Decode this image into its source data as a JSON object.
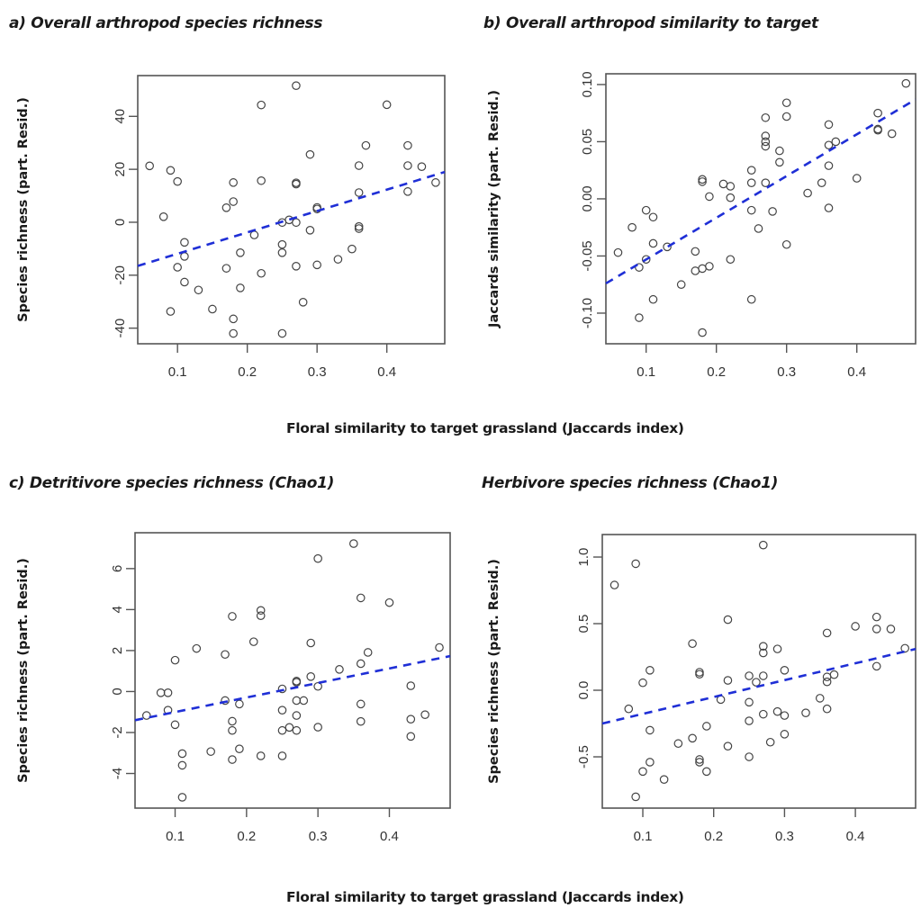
{
  "figure": {
    "shared_xlabel_top": "Floral similarity to target grassland (Jaccards index)",
    "shared_xlabel_bottom": "Floral similarity to target grassland (Jaccards index)",
    "fit_line_color": "#1f2fd6",
    "point_color": "#444444"
  },
  "chart_data": [
    {
      "id": "a",
      "type": "scatter",
      "title": "a) Overall arthropod species richness",
      "xlabel": "Floral similarity to target grassland (Jaccards index)",
      "ylabel": "Species richness (part. Resid.)",
      "xlim": [
        0.043,
        0.483
      ],
      "ylim": [
        -45.9,
        55.4
      ],
      "xticks": [
        0.1,
        0.2,
        0.3,
        0.4
      ],
      "xtick_labels": [
        "0.1",
        "0.2",
        "0.3",
        "0.4"
      ],
      "yticks": [
        -40,
        -20,
        0,
        20,
        40
      ],
      "ytick_labels": [
        "-40",
        "-20",
        "0",
        "20",
        "40"
      ],
      "grid": false,
      "fit_line": {
        "x": [
          0.043,
          0.483
        ],
        "y": [
          -16.5,
          19.0
        ],
        "style": "dashed"
      },
      "points": [
        [
          0.06,
          21.3
        ],
        [
          0.09,
          19.6
        ],
        [
          0.1,
          15.4
        ],
        [
          0.08,
          2.1
        ],
        [
          0.11,
          -7.6
        ],
        [
          0.11,
          -12.9
        ],
        [
          0.1,
          -17.0
        ],
        [
          0.11,
          -22.6
        ],
        [
          0.13,
          -25.6
        ],
        [
          0.09,
          -33.7
        ],
        [
          0.15,
          -32.8
        ],
        [
          0.18,
          -36.5
        ],
        [
          0.18,
          -42.0
        ],
        [
          0.17,
          5.5
        ],
        [
          0.18,
          7.8
        ],
        [
          0.18,
          15.0
        ],
        [
          0.17,
          -17.4
        ],
        [
          0.19,
          -11.5
        ],
        [
          0.19,
          -24.8
        ],
        [
          0.22,
          44.3
        ],
        [
          0.22,
          15.7
        ],
        [
          0.21,
          -4.8
        ],
        [
          0.22,
          -19.3
        ],
        [
          0.25,
          -0.1
        ],
        [
          0.25,
          -8.4
        ],
        [
          0.25,
          -11.5
        ],
        [
          0.25,
          -42.0
        ],
        [
          0.26,
          0.9
        ],
        [
          0.27,
          51.6
        ],
        [
          0.29,
          25.6
        ],
        [
          0.27,
          14.9
        ],
        [
          0.27,
          14.4
        ],
        [
          0.3,
          5.6
        ],
        [
          0.3,
          5.0
        ],
        [
          0.27,
          -0.1
        ],
        [
          0.29,
          -3.0
        ],
        [
          0.27,
          -16.6
        ],
        [
          0.3,
          -16.1
        ],
        [
          0.33,
          -14.0
        ],
        [
          0.35,
          -10.1
        ],
        [
          0.28,
          -30.2
        ],
        [
          0.36,
          21.4
        ],
        [
          0.37,
          29.0
        ],
        [
          0.36,
          11.2
        ],
        [
          0.36,
          -1.6
        ],
        [
          0.36,
          -2.4
        ],
        [
          0.4,
          44.4
        ],
        [
          0.43,
          29.0
        ],
        [
          0.43,
          21.4
        ],
        [
          0.43,
          11.6
        ],
        [
          0.45,
          21.0
        ],
        [
          0.47,
          15.0
        ]
      ]
    },
    {
      "id": "b",
      "type": "scatter",
      "title": "b) Overall arthropod similarity to target",
      "xlabel": "Floral similarity to target grassland (Jaccards index)",
      "ylabel": "Jaccards  similarity (part. Resid.)",
      "xlim": [
        0.0427,
        0.4837
      ],
      "ylim": [
        -0.1268,
        0.1094
      ],
      "xticks": [
        0.1,
        0.2,
        0.3,
        0.4
      ],
      "xtick_labels": [
        "0.1",
        "0.2",
        "0.3",
        "0.4"
      ],
      "yticks": [
        -0.1,
        -0.05,
        0.0,
        0.05,
        0.1
      ],
      "ytick_labels": [
        "-0.10",
        "-0.05",
        "0.00",
        "0.05",
        "0.10"
      ],
      "grid": false,
      "fit_line": {
        "x": [
          0.0427,
          0.4837
        ],
        "y": [
          -0.074,
          0.087
        ],
        "style": "dashed"
      },
      "points": [
        [
          0.06,
          -0.047
        ],
        [
          0.08,
          -0.025
        ],
        [
          0.09,
          -0.06
        ],
        [
          0.1,
          -0.053
        ],
        [
          0.1,
          -0.01
        ],
        [
          0.11,
          -0.016
        ],
        [
          0.11,
          -0.039
        ],
        [
          0.09,
          -0.104
        ],
        [
          0.11,
          -0.088
        ],
        [
          0.13,
          -0.042
        ],
        [
          0.15,
          -0.075
        ],
        [
          0.17,
          -0.046
        ],
        [
          0.17,
          -0.063
        ],
        [
          0.18,
          -0.061
        ],
        [
          0.19,
          -0.059
        ],
        [
          0.18,
          -0.117
        ],
        [
          0.18,
          0.017
        ],
        [
          0.18,
          0.015
        ],
        [
          0.19,
          0.002
        ],
        [
          0.21,
          0.013
        ],
        [
          0.22,
          0.011
        ],
        [
          0.22,
          0.001
        ],
        [
          0.22,
          -0.053
        ],
        [
          0.25,
          0.025
        ],
        [
          0.25,
          0.014
        ],
        [
          0.25,
          -0.01
        ],
        [
          0.25,
          -0.088
        ],
        [
          0.26,
          -0.026
        ],
        [
          0.27,
          0.071
        ],
        [
          0.27,
          0.055
        ],
        [
          0.27,
          0.05
        ],
        [
          0.27,
          0.046
        ],
        [
          0.27,
          0.014
        ],
        [
          0.28,
          -0.011
        ],
        [
          0.29,
          0.042
        ],
        [
          0.29,
          0.032
        ],
        [
          0.3,
          0.084
        ],
        [
          0.3,
          0.072
        ],
        [
          0.3,
          -0.04
        ],
        [
          0.33,
          0.005
        ],
        [
          0.35,
          0.014
        ],
        [
          0.36,
          0.065
        ],
        [
          0.36,
          0.047
        ],
        [
          0.37,
          0.05
        ],
        [
          0.36,
          0.029
        ],
        [
          0.36,
          -0.008
        ],
        [
          0.4,
          0.018
        ],
        [
          0.43,
          0.075
        ],
        [
          0.43,
          0.061
        ],
        [
          0.43,
          0.06
        ],
        [
          0.45,
          0.057
        ],
        [
          0.47,
          0.101
        ]
      ]
    },
    {
      "id": "c",
      "type": "scatter",
      "title": "c) Detritivore species richness (Chao1)",
      "xlabel": "Floral similarity to target grassland (Jaccards index)",
      "ylabel": "Species richness (part. Resid.)",
      "xlim": [
        0.0439,
        0.4851
      ],
      "ylim": [
        -5.69,
        7.75
      ],
      "xticks": [
        0.1,
        0.2,
        0.3,
        0.4
      ],
      "xtick_labels": [
        "0.1",
        "0.2",
        "0.3",
        "0.4"
      ],
      "yticks": [
        -4,
        -2,
        0,
        2,
        4,
        6
      ],
      "ytick_labels": [
        "-4",
        "-2",
        "0",
        "2",
        "4",
        "6"
      ],
      "grid": false,
      "fit_line": {
        "x": [
          0.0439,
          0.4851
        ],
        "y": [
          -1.4,
          1.73
        ],
        "style": "dashed"
      },
      "points": [
        [
          0.06,
          -1.17
        ],
        [
          0.08,
          -0.06
        ],
        [
          0.09,
          -0.06
        ],
        [
          0.09,
          -0.91
        ],
        [
          0.1,
          1.53
        ],
        [
          0.1,
          -1.62
        ],
        [
          0.11,
          -3.03
        ],
        [
          0.11,
          -3.6
        ],
        [
          0.11,
          -5.16
        ],
        [
          0.13,
          2.1
        ],
        [
          0.15,
          -2.93
        ],
        [
          0.17,
          1.81
        ],
        [
          0.17,
          -0.44
        ],
        [
          0.18,
          3.67
        ],
        [
          0.18,
          -1.45
        ],
        [
          0.18,
          -1.9
        ],
        [
          0.18,
          -3.32
        ],
        [
          0.19,
          -0.61
        ],
        [
          0.19,
          -2.8
        ],
        [
          0.21,
          2.43
        ],
        [
          0.22,
          3.96
        ],
        [
          0.22,
          3.7
        ],
        [
          0.22,
          -3.14
        ],
        [
          0.25,
          0.13
        ],
        [
          0.25,
          -0.91
        ],
        [
          0.25,
          -1.9
        ],
        [
          0.25,
          -3.14
        ],
        [
          0.26,
          -1.75
        ],
        [
          0.27,
          0.51
        ],
        [
          0.27,
          0.45
        ],
        [
          0.27,
          -0.44
        ],
        [
          0.28,
          -0.44
        ],
        [
          0.27,
          -1.17
        ],
        [
          0.27,
          -1.9
        ],
        [
          0.29,
          2.37
        ],
        [
          0.29,
          0.73
        ],
        [
          0.3,
          6.49
        ],
        [
          0.3,
          0.25
        ],
        [
          0.3,
          -1.74
        ],
        [
          0.33,
          1.08
        ],
        [
          0.35,
          7.22
        ],
        [
          0.36,
          4.57
        ],
        [
          0.36,
          1.36
        ],
        [
          0.37,
          1.91
        ],
        [
          0.36,
          -0.61
        ],
        [
          0.36,
          -1.46
        ],
        [
          0.4,
          4.34
        ],
        [
          0.43,
          0.28
        ],
        [
          0.43,
          -1.35
        ],
        [
          0.43,
          -2.19
        ],
        [
          0.45,
          -1.13
        ],
        [
          0.47,
          2.15
        ]
      ]
    },
    {
      "id": "d",
      "type": "scatter",
      "title": "Herbivore species richness (Chao1)",
      "xlabel": "Floral similarity to target grassland (Jaccards index)",
      "ylabel": "Species richness (part. Resid.)",
      "xlim": [
        0.0428,
        0.485
      ],
      "ylim": [
        -0.885,
        1.169
      ],
      "xticks": [
        0.1,
        0.2,
        0.3,
        0.4
      ],
      "xtick_labels": [
        "0.1",
        "0.2",
        "0.3",
        "0.4"
      ],
      "yticks": [
        -0.5,
        0.0,
        0.5,
        1.0
      ],
      "ytick_labels": [
        "-0.5",
        "0.0",
        "0.5",
        "1.0"
      ],
      "grid": false,
      "fit_line": {
        "x": [
          0.0428,
          0.485
        ],
        "y": [
          -0.25,
          0.31
        ],
        "style": "dashed"
      },
      "points": [
        [
          0.06,
          0.79
        ],
        [
          0.09,
          0.95
        ],
        [
          0.08,
          -0.14
        ],
        [
          0.1,
          0.056
        ],
        [
          0.11,
          0.15
        ],
        [
          0.11,
          -0.3
        ],
        [
          0.11,
          -0.54
        ],
        [
          0.1,
          -0.61
        ],
        [
          0.09,
          -0.8
        ],
        [
          0.13,
          -0.67
        ],
        [
          0.15,
          -0.4
        ],
        [
          0.17,
          0.35
        ],
        [
          0.17,
          -0.36
        ],
        [
          0.18,
          0.135
        ],
        [
          0.18,
          0.12
        ],
        [
          0.18,
          -0.52
        ],
        [
          0.18,
          -0.54
        ],
        [
          0.19,
          -0.27
        ],
        [
          0.19,
          -0.61
        ],
        [
          0.21,
          -0.07
        ],
        [
          0.22,
          0.53
        ],
        [
          0.22,
          0.074
        ],
        [
          0.22,
          -0.42
        ],
        [
          0.25,
          0.108
        ],
        [
          0.25,
          -0.09
        ],
        [
          0.25,
          -0.23
        ],
        [
          0.25,
          -0.5
        ],
        [
          0.26,
          0.06
        ],
        [
          0.27,
          1.09
        ],
        [
          0.27,
          0.33
        ],
        [
          0.27,
          0.28
        ],
        [
          0.27,
          0.108
        ],
        [
          0.27,
          -0.18
        ],
        [
          0.29,
          0.31
        ],
        [
          0.29,
          -0.16
        ],
        [
          0.3,
          0.15
        ],
        [
          0.3,
          -0.19
        ],
        [
          0.3,
          -0.33
        ],
        [
          0.28,
          -0.39
        ],
        [
          0.33,
          -0.17
        ],
        [
          0.35,
          -0.06
        ],
        [
          0.36,
          0.43
        ],
        [
          0.36,
          0.1
        ],
        [
          0.36,
          0.063
        ],
        [
          0.37,
          0.117
        ],
        [
          0.36,
          -0.14
        ],
        [
          0.4,
          0.48
        ],
        [
          0.43,
          0.55
        ],
        [
          0.43,
          0.46
        ],
        [
          0.43,
          0.18
        ],
        [
          0.45,
          0.46
        ],
        [
          0.47,
          0.315
        ]
      ]
    }
  ]
}
